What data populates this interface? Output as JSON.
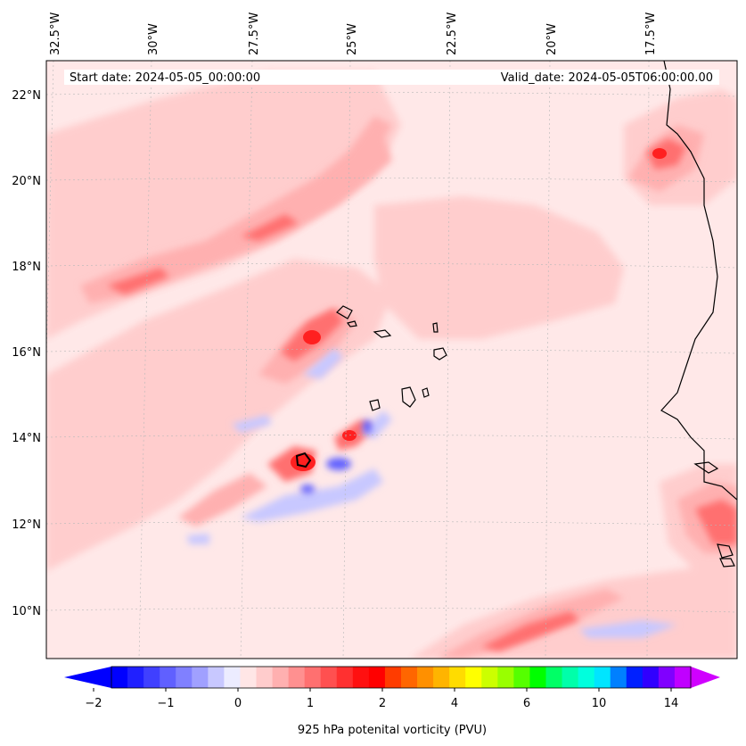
{
  "header": {
    "start_date": "Start date: 2024-05-05_00:00:00",
    "valid_date": "Valid_date: 2024-05-05T06:00:00.00"
  },
  "lon_labels": [
    "32.5°W",
    "30°W",
    "27.5°W",
    "25°W",
    "22.5°W",
    "20°W",
    "17.5°W"
  ],
  "lat_labels": [
    "22°N",
    "20°N",
    "18°N",
    "16°N",
    "14°N",
    "12°N",
    "10°N"
  ],
  "colorbar": {
    "title": "925 hPa potenital vorticity (PVU)",
    "tick_labels": [
      "−2",
      "−1",
      "0",
      "1",
      "2",
      "4",
      "6",
      "10",
      "14"
    ],
    "colors": [
      "#0000ff",
      "#2020ff",
      "#4040ff",
      "#6060ff",
      "#8080ff",
      "#a0a0ff",
      "#c8c8ff",
      "#ececff",
      "#ffe6e6",
      "#ffcccc",
      "#ffb0b0",
      "#ff9090",
      "#ff7070",
      "#ff5050",
      "#ff3030",
      "#ff1010",
      "#ff0000",
      "#ff3c00",
      "#ff6600",
      "#ff9000",
      "#ffb400",
      "#ffdc00",
      "#ffff00",
      "#ccff00",
      "#99ff00",
      "#55ff00",
      "#00ff00",
      "#00ff66",
      "#00ffaa",
      "#00ffdd",
      "#00e5ff",
      "#0080ff",
      "#0020ff",
      "#3000ff",
      "#8000ff",
      "#c000ff"
    ],
    "extend_min_color": "#0000ff",
    "extend_max_color": "#d000ff"
  },
  "map": {
    "background_color": "#ffe8e8",
    "coastline_color": "#000000"
  }
}
